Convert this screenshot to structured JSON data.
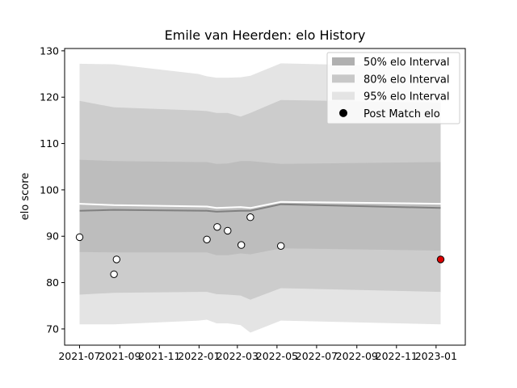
{
  "chart_data": {
    "type": "area",
    "title": "Emile van Heerden: elo History",
    "xlabel": "",
    "ylabel": "elo score",
    "xlim": [
      "2021-06-08",
      "2023-02-15"
    ],
    "ylim": [
      66.5,
      130.5
    ],
    "yticks": [
      70,
      80,
      90,
      100,
      110,
      120,
      130
    ],
    "xticks": [
      {
        "date": "2021-07-01",
        "label": "2021-07"
      },
      {
        "date": "2021-09-01",
        "label": "2021-09"
      },
      {
        "date": "2021-11-01",
        "label": "2021-11"
      },
      {
        "date": "2022-01-01",
        "label": "2022-01"
      },
      {
        "date": "2022-03-01",
        "label": "2022-03"
      },
      {
        "date": "2022-05-01",
        "label": "2022-05"
      },
      {
        "date": "2022-07-01",
        "label": "2022-07"
      },
      {
        "date": "2022-09-01",
        "label": "2022-09"
      },
      {
        "date": "2022-11-01",
        "label": "2022-11"
      },
      {
        "date": "2023-01-01",
        "label": "2023-01"
      }
    ],
    "grid": false,
    "legend_position": "top-right",
    "legend": [
      {
        "label": "50% elo Interval",
        "color": "#b0b0b0",
        "kind": "patch"
      },
      {
        "label": "80% elo Interval",
        "color": "#c8c8c8",
        "kind": "patch"
      },
      {
        "label": "95% elo Interval",
        "color": "#e4e4e4",
        "kind": "patch"
      },
      {
        "label": "Post Match elo",
        "color": "#000000",
        "kind": "marker"
      }
    ],
    "band_colors": {
      "p95": "#e4e4e4",
      "p80": "#cccccc",
      "p50": "#bdbdbd"
    },
    "bands": {
      "dates": [
        "2021-07-01",
        "2021-08-23",
        "2021-12-31",
        "2022-01-13",
        "2022-01-28",
        "2022-02-14",
        "2022-03-06",
        "2022-03-21",
        "2022-05-07",
        "2023-01-08"
      ],
      "p95_upper": [
        127.2,
        127.1,
        125.0,
        124.5,
        124.2,
        124.2,
        124.3,
        124.6,
        127.3,
        126.5
      ],
      "p95_lower": [
        71.0,
        71.0,
        71.8,
        72.0,
        71.2,
        71.2,
        70.8,
        69.2,
        71.8,
        71.0
      ],
      "p80_upper": [
        119.2,
        117.8,
        117.1,
        117.0,
        116.6,
        116.6,
        115.8,
        116.6,
        119.4,
        118.8
      ],
      "p80_lower": [
        77.4,
        77.8,
        78.0,
        78.0,
        77.5,
        77.4,
        77.2,
        76.3,
        78.8,
        78.0
      ],
      "p50_upper": [
        106.5,
        106.2,
        106.0,
        106.0,
        105.6,
        105.7,
        106.2,
        106.2,
        105.6,
        106.0
      ],
      "p50_lower": [
        86.6,
        86.5,
        86.5,
        86.5,
        85.9,
        85.9,
        86.3,
        86.1,
        87.4,
        86.9
      ]
    },
    "series": [
      {
        "kind": "line",
        "color": "#ffffff",
        "dates": [
          "2021-07-01",
          "2021-08-23",
          "2022-01-13",
          "2022-01-28",
          "2022-03-06",
          "2022-03-21",
          "2022-05-07",
          "2023-01-08"
        ],
        "values": [
          97.0,
          96.7,
          96.4,
          96.1,
          96.3,
          96.1,
          97.4,
          97.0
        ]
      },
      {
        "kind": "line",
        "color": "#808080",
        "dates": [
          "2021-07-01",
          "2021-08-23",
          "2022-01-13",
          "2022-01-28",
          "2022-03-06",
          "2022-03-21",
          "2022-05-07",
          "2023-01-08"
        ],
        "values": [
          95.5,
          95.7,
          95.5,
          95.3,
          95.5,
          95.5,
          96.9,
          96.1
        ]
      }
    ],
    "points": [
      {
        "date": "2021-07-01",
        "value": 89.8,
        "color": "#ffffff"
      },
      {
        "date": "2021-08-23",
        "value": 81.8,
        "color": "#ffffff"
      },
      {
        "date": "2021-08-27",
        "value": 85.0,
        "color": "#ffffff"
      },
      {
        "date": "2022-01-13",
        "value": 89.3,
        "color": "#ffffff"
      },
      {
        "date": "2022-01-29",
        "value": 92.0,
        "color": "#ffffff"
      },
      {
        "date": "2022-02-14",
        "value": 91.2,
        "color": "#ffffff"
      },
      {
        "date": "2022-03-07",
        "value": 88.1,
        "color": "#ffffff"
      },
      {
        "date": "2022-03-21",
        "value": 94.1,
        "color": "#ffffff"
      },
      {
        "date": "2022-05-07",
        "value": 87.9,
        "color": "#ffffff"
      },
      {
        "date": "2023-01-08",
        "value": 85.0,
        "color": "#dd0000"
      }
    ]
  }
}
